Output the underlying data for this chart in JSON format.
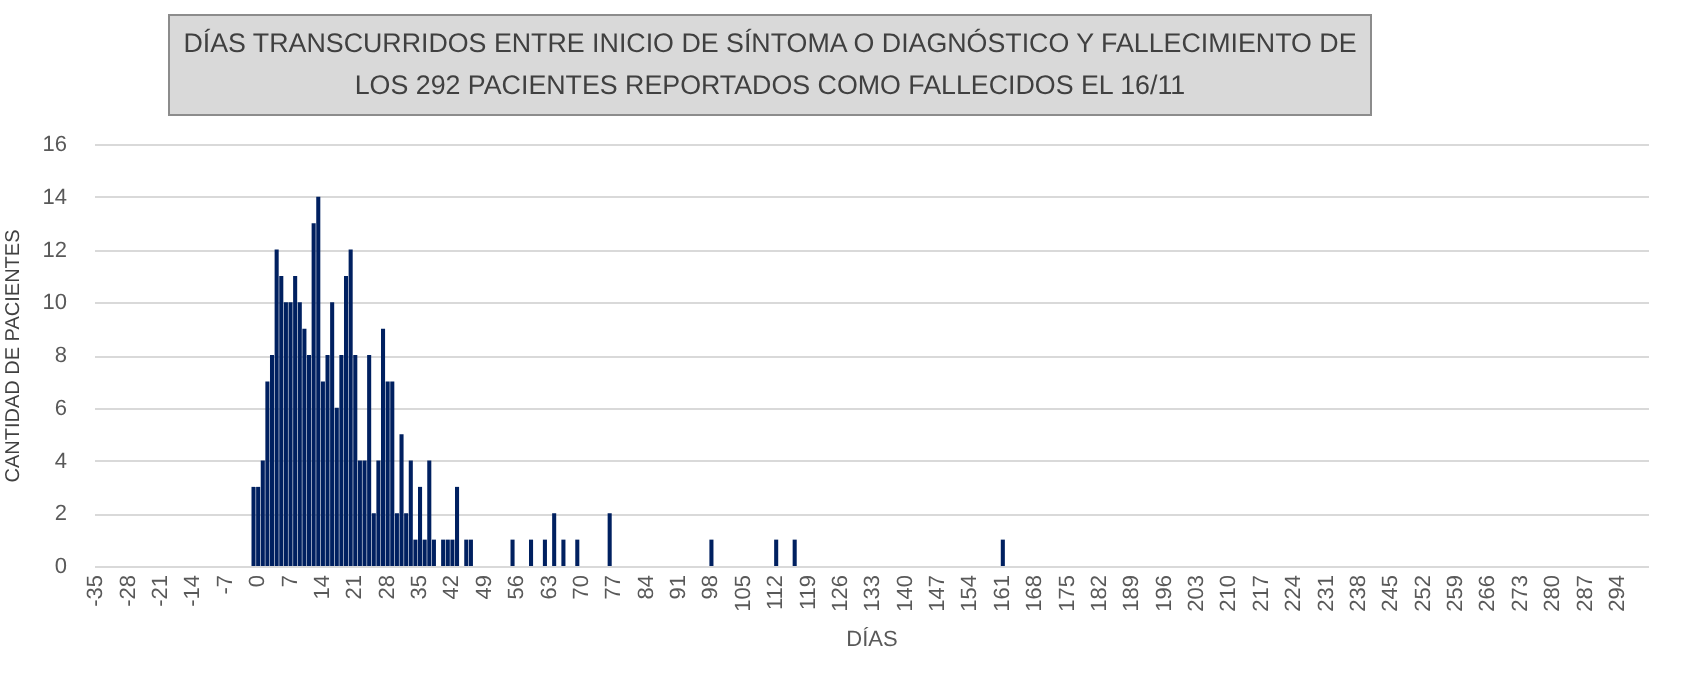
{
  "chart_data": {
    "type": "bar",
    "title": "DÍAS TRANSCURRIDOS ENTRE INICIO DE SÍNTOMA O DIAGNÓSTICO Y FALLECIMIENTO DE LOS 292 PACIENTES REPORTADOS COMO FALLECIDOS EL 16/11",
    "xlabel": "DÍAS",
    "ylabel": "CANTIDAD  DE PACIENTES",
    "categories": [
      "-35",
      null,
      null,
      null,
      null,
      null,
      null,
      "-28",
      null,
      null,
      null,
      null,
      null,
      null,
      "-21",
      null,
      null,
      null,
      null,
      null,
      null,
      "-14",
      null,
      null,
      null,
      null,
      null,
      null,
      "-7",
      null,
      null,
      null,
      null,
      null,
      null,
      "0",
      null,
      null,
      null,
      null,
      null,
      null,
      "7",
      null,
      null,
      null,
      null,
      null,
      null,
      "14",
      null,
      null,
      null,
      null,
      null,
      null,
      "21",
      null,
      null,
      null,
      null,
      null,
      null,
      "28",
      null,
      null,
      null,
      null,
      null,
      null,
      "35",
      null,
      null,
      null,
      null,
      null,
      null,
      "42",
      null,
      null,
      null,
      null,
      null,
      null,
      "49",
      null,
      null,
      null,
      null,
      null,
      null,
      "56",
      null,
      null,
      null,
      null,
      null,
      null,
      "63",
      null,
      null,
      null,
      null,
      null,
      null,
      "70",
      null,
      null,
      null,
      null,
      null,
      null,
      "77",
      null,
      null,
      null,
      null,
      null,
      null,
      "84",
      null,
      null,
      null,
      null,
      null,
      null,
      "91",
      null,
      null,
      null,
      null,
      null,
      null,
      "98",
      null,
      null,
      null,
      null,
      null,
      null,
      "105",
      null,
      null,
      null,
      null,
      null,
      null,
      "112",
      null,
      null,
      null,
      null,
      null,
      null,
      "119",
      null,
      null,
      null,
      null,
      null,
      null,
      "126",
      null,
      null,
      null,
      null,
      null,
      null,
      "133",
      null,
      null,
      null,
      null,
      null,
      null,
      "140",
      null,
      null,
      null,
      null,
      null,
      null,
      "147",
      null,
      null,
      null,
      null,
      null,
      null,
      "154",
      null,
      null,
      null,
      null,
      null,
      null,
      "161",
      null,
      null,
      null,
      null,
      null,
      null,
      "168",
      null,
      null,
      null,
      null,
      null,
      null,
      "175",
      null,
      null,
      null,
      null,
      null,
      null,
      "182",
      null,
      null,
      null,
      null,
      null,
      null,
      "189",
      null,
      null,
      null,
      null,
      null,
      null,
      "196",
      null,
      null,
      null,
      null,
      null,
      null,
      "203",
      null,
      null,
      null,
      null,
      null,
      null,
      "210",
      null,
      null,
      null,
      null,
      null,
      null,
      "217",
      null,
      null,
      null,
      null,
      null,
      null,
      "224",
      null,
      null,
      null,
      null,
      null,
      null,
      "231",
      null,
      null,
      null,
      null,
      null,
      null,
      "238",
      null,
      null,
      null,
      null,
      null,
      null,
      "245",
      null,
      null,
      null,
      null,
      null,
      null,
      "252",
      null,
      null,
      null,
      null,
      null,
      null,
      "259",
      null,
      null,
      null,
      null,
      null,
      null,
      "266",
      null,
      null,
      null,
      null,
      null,
      null,
      "273",
      null,
      null,
      null,
      null,
      null,
      null,
      "280",
      null,
      null,
      null,
      null,
      null,
      null,
      "287",
      null,
      null,
      null,
      null,
      null,
      null,
      "294",
      null,
      null,
      null,
      null,
      null,
      null
    ],
    "values": [
      0,
      0,
      0,
      0,
      0,
      0,
      0,
      0,
      0,
      0,
      0,
      0,
      0,
      0,
      0,
      0,
      0,
      0,
      0,
      0,
      0,
      0,
      0,
      0,
      0,
      0,
      0,
      0,
      0,
      0,
      0,
      0,
      0,
      0,
      3,
      3,
      4,
      7,
      8,
      12,
      11,
      10,
      10,
      11,
      10,
      9,
      8,
      13,
      14,
      7,
      8,
      10,
      6,
      8,
      11,
      12,
      8,
      4,
      4,
      8,
      2,
      4,
      9,
      7,
      7,
      2,
      5,
      2,
      4,
      1,
      3,
      1,
      4,
      1,
      0,
      1,
      1,
      1,
      3,
      0,
      1,
      1,
      0,
      0,
      0,
      0,
      0,
      0,
      0,
      0,
      1,
      0,
      0,
      0,
      1,
      0,
      0,
      1,
      0,
      2,
      0,
      1,
      0,
      0,
      1,
      0,
      0,
      0,
      0,
      0,
      0,
      2,
      0,
      0,
      0,
      0,
      0,
      0,
      0,
      0,
      0,
      0,
      0,
      0,
      0,
      0,
      0,
      0,
      0,
      0,
      0,
      0,
      0,
      1,
      0,
      0,
      0,
      0,
      0,
      0,
      0,
      0,
      0,
      0,
      0,
      0,
      0,
      1,
      0,
      0,
      0,
      1,
      0,
      0,
      0,
      0,
      0,
      0,
      0,
      0,
      0,
      0,
      0,
      0,
      0,
      0,
      0,
      0,
      0,
      0,
      0,
      0,
      0,
      0,
      0,
      0,
      0,
      0,
      0,
      0,
      0,
      0,
      0,
      0,
      0,
      0,
      0,
      0,
      0,
      0,
      0,
      0,
      0,
      0,
      0,
      0,
      1,
      0,
      0,
      0,
      0,
      0,
      0,
      0,
      0,
      0,
      0,
      0,
      0,
      0,
      0,
      0,
      0,
      0,
      0,
      0,
      0,
      0,
      0,
      0,
      0,
      0,
      0,
      0,
      0,
      0,
      0,
      0,
      0,
      0,
      0,
      0,
      0,
      0,
      0,
      0,
      0,
      0,
      0,
      0,
      0,
      0,
      0,
      0,
      0,
      0,
      0,
      0,
      0,
      0,
      0,
      0,
      0,
      0,
      0,
      0,
      0,
      0,
      0,
      0,
      0,
      0,
      0,
      0,
      0,
      0,
      0,
      0,
      0,
      0,
      0,
      0,
      0,
      0,
      0,
      0,
      0,
      0,
      0,
      0,
      0,
      0,
      0,
      0,
      0,
      0,
      0,
      0,
      0,
      0,
      0,
      0,
      0,
      0,
      0,
      0,
      0,
      0,
      0,
      0,
      0,
      0,
      0,
      0,
      0,
      0,
      0,
      0,
      0,
      0,
      0,
      0,
      0,
      0,
      0,
      0,
      0,
      0,
      0,
      0,
      0,
      0,
      0,
      0,
      0,
      0,
      0,
      0,
      0,
      0,
      0,
      0,
      0,
      0,
      0,
      0
    ],
    "color": "#002060",
    "ylim": [
      0,
      16
    ],
    "yticks": [
      0,
      2,
      4,
      6,
      8,
      10,
      12,
      14,
      16
    ],
    "grid": "y"
  }
}
